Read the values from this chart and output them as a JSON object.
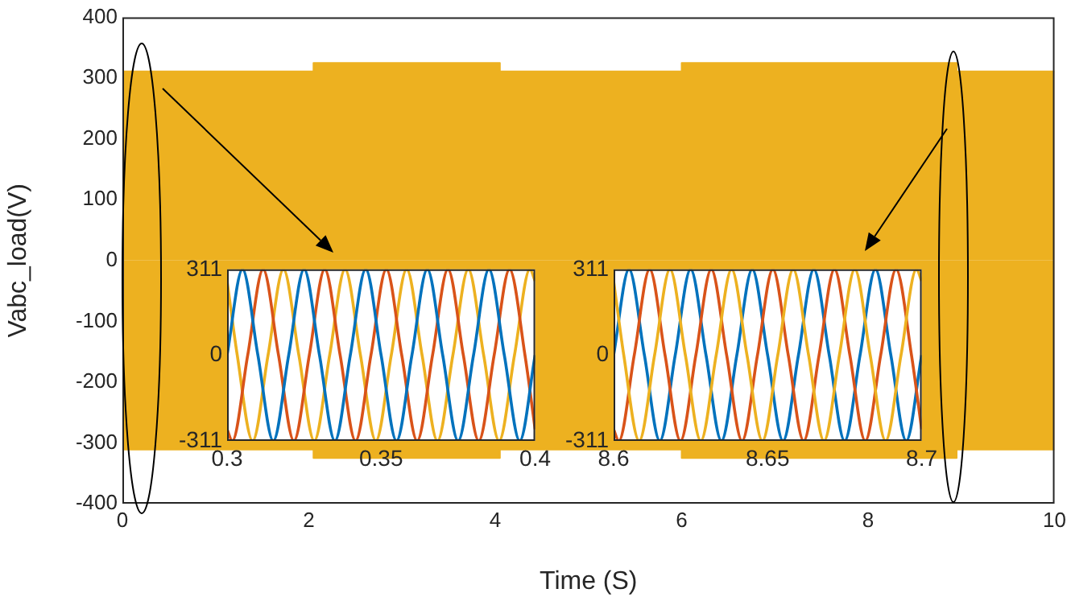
{
  "chart_data": [
    {
      "type": "area",
      "xlabel": "Time (S)",
      "ylabel": "Vabc_load(V)",
      "xlim": [
        0,
        10
      ],
      "ylim": [
        -400,
        400
      ],
      "xticks": [
        0,
        2,
        4,
        6,
        8,
        10
      ],
      "yticks": [
        -400,
        -300,
        -200,
        -100,
        0,
        100,
        200,
        300,
        400
      ],
      "grid": false,
      "legend": false,
      "marker": "none",
      "series": [
        {
          "color": "#edb120",
          "x": [
            0,
            2.05,
            2.05,
            4.05,
            4.05,
            6,
            6,
            8.95,
            8.95,
            10
          ],
          "values": [
            311,
            311,
            325,
            325,
            311,
            311,
            325,
            325,
            311,
            311
          ]
        },
        {
          "color": "#edb120",
          "x": [
            0,
            2.05,
            2.05,
            4.05,
            4.05,
            6,
            6,
            8.95,
            8.95,
            10
          ],
          "values": [
            -311,
            -311,
            -325,
            -325,
            -311,
            -311,
            -325,
            -325,
            -311,
            -311
          ]
        }
      ]
    },
    {
      "type": "line",
      "xlim": [
        0.3,
        0.4
      ],
      "ylim": [
        -311,
        311
      ],
      "xticks": [
        0.3,
        0.35,
        0.4
      ],
      "yticks": [
        -311,
        0,
        311
      ],
      "grid": false,
      "legend": false,
      "marker": "none",
      "series": [
        {
          "color": "#0072bd",
          "x": [
            0.3,
            0.305,
            0.31,
            0.315,
            0.32,
            0.325,
            0.33,
            0.335,
            0.34,
            0.345,
            0.35,
            0.355,
            0.36,
            0.365,
            0.37,
            0.375,
            0.38,
            0.385,
            0.39,
            0.395,
            0.4
          ],
          "values": [
            0,
            311,
            0,
            -311,
            0,
            311,
            0,
            -311,
            0,
            311,
            0,
            -311,
            0,
            311,
            0,
            -311,
            0,
            311,
            0,
            -311,
            0
          ]
        },
        {
          "color": "#d95319",
          "x": [
            0.3,
            0.3017,
            0.3067,
            0.3117,
            0.3167,
            0.3217,
            0.3267,
            0.3317,
            0.3367,
            0.3417,
            0.3467,
            0.3517,
            0.3567,
            0.3617,
            0.3667,
            0.3717,
            0.3767,
            0.3817,
            0.3867,
            0.3917,
            0.3967,
            0.4
          ],
          "values": [
            -269,
            -311,
            0,
            311,
            0,
            -311,
            0,
            311,
            0,
            -311,
            0,
            311,
            0,
            -311,
            0,
            311,
            0,
            -311,
            0,
            311,
            0,
            -269
          ]
        },
        {
          "color": "#edb120",
          "x": [
            0.3,
            0.3033,
            0.3083,
            0.3133,
            0.3183,
            0.3233,
            0.3283,
            0.3333,
            0.3383,
            0.3433,
            0.3483,
            0.3533,
            0.3583,
            0.3633,
            0.3683,
            0.3733,
            0.3783,
            0.3833,
            0.3883,
            0.3933,
            0.3983,
            0.4
          ],
          "values": [
            269,
            0,
            -311,
            0,
            311,
            0,
            -311,
            0,
            311,
            0,
            -311,
            0,
            311,
            0,
            -311,
            0,
            311,
            0,
            -311,
            0,
            311,
            269
          ]
        }
      ]
    },
    {
      "type": "line",
      "xlim": [
        8.6,
        8.7
      ],
      "ylim": [
        -311,
        311
      ],
      "xticks": [
        8.6,
        8.65,
        8.7
      ],
      "yticks": [
        -311,
        0,
        311
      ],
      "grid": false,
      "legend": false,
      "marker": "none",
      "series": [
        {
          "color": "#edb120",
          "x": [
            8.6,
            8.6033,
            8.6083,
            8.6133,
            8.6183,
            8.6233,
            8.6283,
            8.6333,
            8.6383,
            8.6433,
            8.6483,
            8.6533,
            8.6583,
            8.6633,
            8.6683,
            8.6733,
            8.6783,
            8.6833,
            8.6883,
            8.6933,
            8.6983,
            8.7
          ],
          "values": [
            269,
            0,
            -311,
            0,
            311,
            0,
            -311,
            0,
            311,
            0,
            -311,
            0,
            311,
            0,
            -311,
            0,
            311,
            0,
            -311,
            0,
            311,
            269
          ]
        },
        {
          "color": "#d95319",
          "x": [
            8.6,
            8.6017,
            8.6067,
            8.6117,
            8.6167,
            8.6217,
            8.6267,
            8.6317,
            8.6367,
            8.6417,
            8.6467,
            8.6517,
            8.6567,
            8.6617,
            8.6667,
            8.6717,
            8.6767,
            8.6817,
            8.6867,
            8.6917,
            8.6967,
            8.7
          ],
          "values": [
            -269,
            -311,
            0,
            311,
            0,
            -311,
            0,
            311,
            0,
            -311,
            0,
            311,
            0,
            -311,
            0,
            311,
            0,
            -311,
            0,
            311,
            0,
            -269
          ]
        },
        {
          "color": "#0072bd",
          "x": [
            8.6,
            8.605,
            8.61,
            8.615,
            8.62,
            8.625,
            8.63,
            8.635,
            8.64,
            8.645,
            8.65,
            8.655,
            8.66,
            8.665,
            8.67,
            8.675,
            8.68,
            8.685,
            8.69,
            8.695,
            8.7
          ],
          "values": [
            0,
            311,
            0,
            -311,
            0,
            311,
            0,
            -311,
            0,
            311,
            0,
            -311,
            0,
            311,
            0,
            -311,
            0,
            311,
            0,
            -311,
            0
          ]
        }
      ]
    }
  ]
}
